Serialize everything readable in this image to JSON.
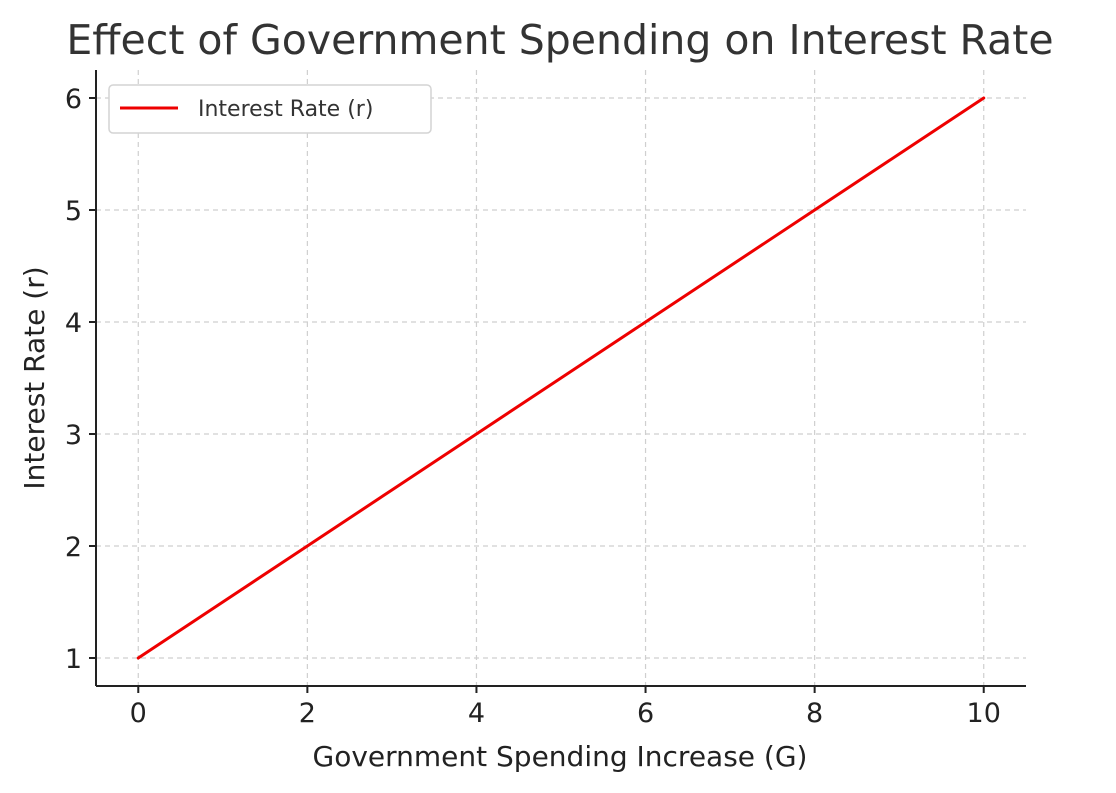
{
  "chart_data": {
    "type": "line",
    "title": "Effect of Government Spending on Interest Rate",
    "xlabel": "Government Spending Increase (G)",
    "ylabel": "Interest Rate (r)",
    "xlim": [
      -0.5,
      10.5
    ],
    "ylim": [
      0.75,
      6.25
    ],
    "xticks": [
      0,
      2,
      4,
      6,
      8,
      10
    ],
    "yticks": [
      1,
      2,
      3,
      4,
      5,
      6
    ],
    "grid": true,
    "legend_position": "top-left",
    "series": [
      {
        "name": "Interest Rate (r)",
        "color": "#ee0000",
        "x": [
          0,
          1,
          2,
          3,
          4,
          5,
          6,
          7,
          8,
          9,
          10
        ],
        "y": [
          1.0,
          1.5,
          2.0,
          2.5,
          3.0,
          3.5,
          4.0,
          4.5,
          5.0,
          5.5,
          6.0
        ]
      }
    ]
  }
}
